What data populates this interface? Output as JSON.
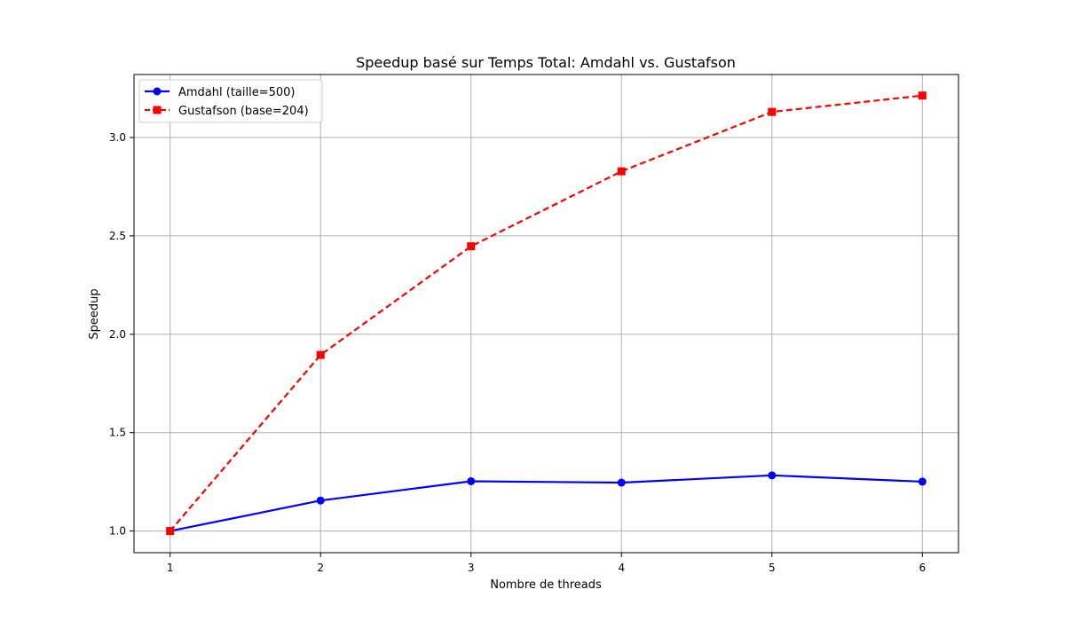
{
  "chart_data": {
    "type": "line",
    "title": "Speedup basé sur Temps Total: Amdahl vs. Gustafson",
    "xlabel": "Nombre de threads",
    "ylabel": "Speedup",
    "x": [
      1,
      2,
      3,
      4,
      5,
      6
    ],
    "x_ticks": [
      "1",
      "2",
      "3",
      "4",
      "5",
      "6"
    ],
    "y_ticks": [
      "1.0",
      "1.5",
      "2.0",
      "2.5",
      "3.0"
    ],
    "y_tick_values": [
      1.0,
      1.5,
      2.0,
      2.5,
      3.0
    ],
    "xlim": [
      0.76,
      6.24
    ],
    "ylim": [
      0.89,
      3.32
    ],
    "grid": true,
    "legend_position": "top-left",
    "series": [
      {
        "name": "Amdahl (taille=500)",
        "values": [
          1.0,
          1.155,
          1.253,
          1.246,
          1.283,
          1.251
        ],
        "color": "#0000ff",
        "marker": "circle",
        "line_style": "solid"
      },
      {
        "name": "Gustafson (base=204)",
        "values": [
          1.0,
          1.895,
          2.447,
          2.828,
          3.13,
          3.213
        ],
        "color": "#ff0000",
        "marker": "square",
        "line_style": "dashed"
      }
    ]
  }
}
